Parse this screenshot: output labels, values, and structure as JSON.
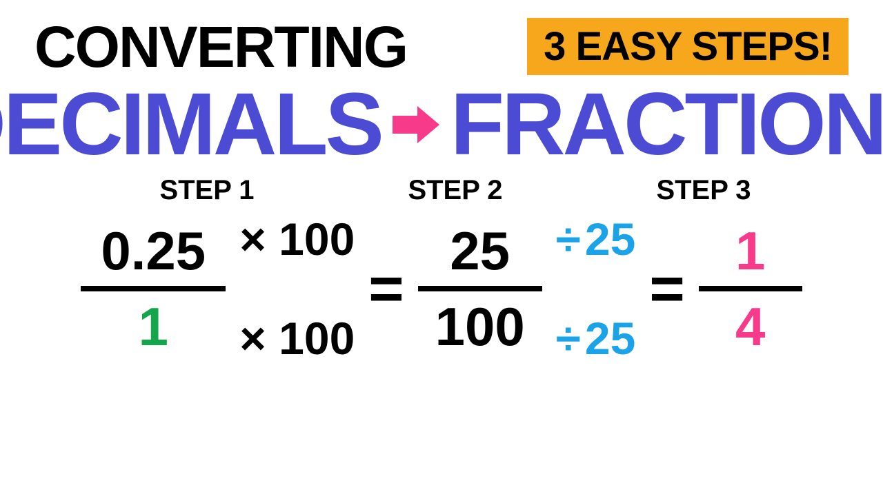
{
  "colors": {
    "black": "#000000",
    "purple": "#4b4bd4",
    "pink": "#f73b8a",
    "orange_bg": "#f7a71b",
    "green": "#14a64a",
    "blue": "#1aa3e8",
    "white": "#ffffff"
  },
  "header": {
    "converting": "CONVERTING",
    "badge": "3 EASY STEPS!"
  },
  "title": {
    "left": "DECIMALS",
    "right": "FRACTIONS"
  },
  "steps": {
    "s1": "STEP 1",
    "s2": "STEP 2",
    "s3": "STEP 3"
  },
  "math": {
    "frac1": {
      "num": "0.25",
      "den": "1",
      "line_w": 210
    },
    "ops1": {
      "top": "× 100",
      "bot": "× 100"
    },
    "eq1": "=",
    "frac2": {
      "num": "25",
      "den": "100",
      "line_w": 180
    },
    "ops2": {
      "top_sym": "÷",
      "top_val": "25",
      "bot_sym": "÷",
      "bot_val": "25"
    },
    "eq2": "=",
    "frac3": {
      "num": "1",
      "den": "4",
      "line_w": 150
    }
  },
  "typography": {
    "converting_fs": 84,
    "badge_fs": 58,
    "bigword_fs": 128,
    "step_fs": 40,
    "math_fs": 78,
    "equals_fs": 88
  }
}
